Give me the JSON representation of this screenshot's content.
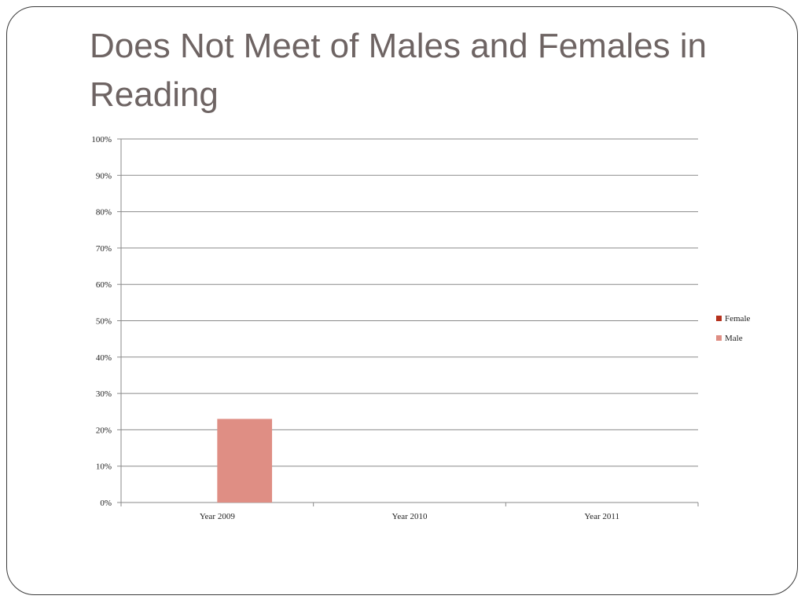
{
  "slide": {
    "title": "Does Not Meet of Males and Females in Reading"
  },
  "chart_data": {
    "type": "bar",
    "title": "Does Not Meet of Males and Females in Reading",
    "categories": [
      "Year 2009",
      "Year 2010",
      "Year 2011"
    ],
    "series": [
      {
        "name": "Female",
        "values": [
          0,
          0,
          0
        ],
        "color": "#b5311c"
      },
      {
        "name": "Male",
        "values": [
          23,
          0,
          0
        ],
        "color": "#df8e84"
      }
    ],
    "y_ticks": [
      "0%",
      "10%",
      "20%",
      "30%",
      "40%",
      "50%",
      "60%",
      "70%",
      "80%",
      "90%",
      "100%"
    ],
    "ylim": [
      0,
      100
    ],
    "y_unit": "%",
    "grid": true,
    "legend_position": "right",
    "xlabel": "",
    "ylabel": ""
  }
}
